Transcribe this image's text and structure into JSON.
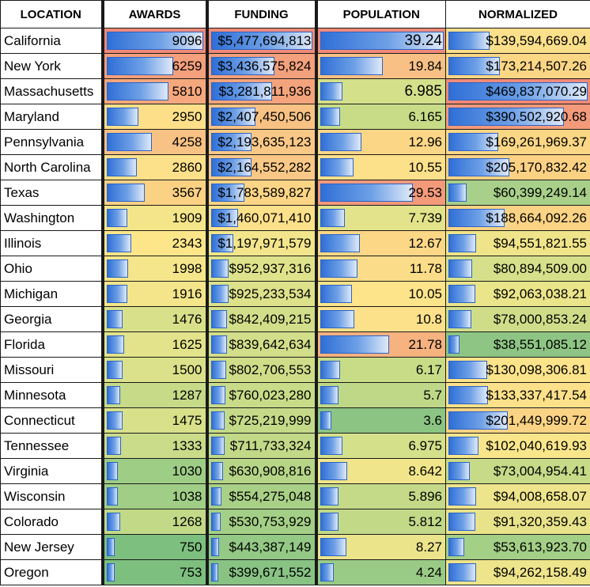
{
  "headers": {
    "location": "LOCATION",
    "awards": "AWARDS",
    "funding": "FUNDING",
    "population": "POPULATION",
    "normalized": "NORMALIZED"
  },
  "bar_maxima": {
    "awards": 9096,
    "funding": 5477694813,
    "population": 39.24,
    "normalized": 469837070.29
  },
  "rows": [
    {
      "location": "California",
      "awards": "9096",
      "funding": "$5,477,694,813",
      "population": "39.24",
      "normalized": "$139,594,669.04",
      "awards_num": 9096,
      "funding_num": 5477694813,
      "population_num": 39.24,
      "normalized_num": 139594669.04,
      "awards_bg": "#f08a78",
      "funding_bg": "#f08a78",
      "population_bg": "#f08a78",
      "normalized_bg": "#fbdf8a"
    },
    {
      "location": "New York",
      "awards": "6259",
      "funding": "$3,436,575,824",
      "population": "19.84",
      "normalized": "$173,214,507.26",
      "awards_num": 6259,
      "funding_num": 3436575824,
      "population_num": 19.84,
      "normalized_num": 173214507.26,
      "awards_bg": "#f4a07c",
      "funding_bg": "#f3a07c",
      "population_bg": "#f8c084",
      "normalized_bg": "#fbd685"
    },
    {
      "location": "Massachusetts",
      "awards": "5810",
      "funding": "$3,281,811,936",
      "population": "6.985",
      "normalized": "$469,837,070.29",
      "awards_num": 5810,
      "funding_num": 3281811936,
      "population_num": 6.985,
      "normalized_num": 469837070.29,
      "awards_bg": "#f5a87d",
      "funding_bg": "#f4a47c",
      "population_bg": "#d4e08a",
      "normalized_bg": "#f08a78"
    },
    {
      "location": "Maryland",
      "awards": "2950",
      "funding": "$2,407,450,506",
      "population": "6.165",
      "normalized": "$390,502,920.68",
      "awards_num": 2950,
      "funding_num": 2407450506,
      "population_num": 6.165,
      "normalized_num": 390502920.68,
      "awards_bg": "#fddf8a",
      "funding_bg": "#f8c284",
      "population_bg": "#c8dc88",
      "normalized_bg": "#f39a7b"
    },
    {
      "location": "Pennsylvania",
      "awards": "4258",
      "funding": "$2,193,635,123",
      "population": "12.96",
      "normalized": "$169,261,969.37",
      "awards_num": 4258,
      "funding_num": 2193635123,
      "population_num": 12.96,
      "normalized_num": 169261969.37,
      "awards_bg": "#f8c284",
      "funding_bg": "#f9c886",
      "population_bg": "#fbd686",
      "normalized_bg": "#fbd785"
    },
    {
      "location": "North Carolina",
      "awards": "2860",
      "funding": "$2,164,552,282",
      "population": "10.55",
      "normalized": "$205,170,832.42",
      "awards_num": 2860,
      "funding_num": 2164552282,
      "population_num": 10.55,
      "normalized_num": 205170832.42,
      "awards_bg": "#fde08a",
      "funding_bg": "#f9c886",
      "population_bg": "#fde08a",
      "normalized_bg": "#fbd184"
    },
    {
      "location": "Texas",
      "awards": "3567",
      "funding": "$1,783,589,827",
      "population": "29.53",
      "normalized": "$60,399,249.14",
      "awards_num": 3567,
      "funding_num": 1783589827,
      "population_num": 29.53,
      "normalized_num": 60399249.14,
      "awards_bg": "#fbd184",
      "funding_bg": "#fbd485",
      "population_bg": "#f39a7b",
      "normalized_bg": "#a8d08a"
    },
    {
      "location": "Washington",
      "awards": "1909",
      "funding": "$1,460,071,410",
      "population": "7.739",
      "normalized": "$188,664,092.26",
      "awards_num": 1909,
      "funding_num": 1460071410,
      "population_num": 7.739,
      "normalized_num": 188664092.26,
      "awards_bg": "#f4e58b",
      "funding_bg": "#fde08a",
      "population_bg": "#e2e38a",
      "normalized_bg": "#fbd385"
    },
    {
      "location": "Illinois",
      "awards": "2343",
      "funding": "$1,197,971,579",
      "population": "12.67",
      "normalized": "$94,551,821.55",
      "awards_num": 2343,
      "funding_num": 1197971579,
      "population_num": 12.67,
      "normalized_num": 94551821.55,
      "awards_bg": "#fde68a",
      "funding_bg": "#f2e58b",
      "population_bg": "#fbd786",
      "normalized_bg": "#f0e48a"
    },
    {
      "location": "Ohio",
      "awards": "1998",
      "funding": "$952,937,316",
      "population": "11.78",
      "normalized": "$80,894,509.00",
      "awards_num": 1998,
      "funding_num": 952937316,
      "population_num": 11.78,
      "normalized_num": 80894509.0,
      "awards_bg": "#f6e68b",
      "funding_bg": "#dfe28a",
      "population_bg": "#fbdc88",
      "normalized_bg": "#d6e08a"
    },
    {
      "location": "Michigan",
      "awards": "1916",
      "funding": "$925,233,534",
      "population": "10.05",
      "normalized": "$92,063,038.21",
      "awards_num": 1916,
      "funding_num": 925233534,
      "population_num": 10.05,
      "normalized_num": 92063038.21,
      "awards_bg": "#f4e58b",
      "funding_bg": "#dce18a",
      "population_bg": "#fde48a",
      "normalized_bg": "#eae48a"
    },
    {
      "location": "Georgia",
      "awards": "1476",
      "funding": "$842,409,215",
      "population": "10.8",
      "normalized": "$78,000,853.24",
      "awards_num": 1476,
      "funding_num": 842409215,
      "population_num": 10.8,
      "normalized_num": 78000853.24,
      "awards_bg": "#d8e08a",
      "funding_bg": "#d2de89",
      "population_bg": "#fde18a",
      "normalized_bg": "#cfdd89"
    },
    {
      "location": "Florida",
      "awards": "1625",
      "funding": "$839,642,634",
      "population": "21.78",
      "normalized": "$38,551,085.12",
      "awards_num": 1625,
      "funding_num": 839642634,
      "population_num": 21.78,
      "normalized_num": 38551085.12,
      "awards_bg": "#e2e38a",
      "funding_bg": "#d2de89",
      "population_bg": "#f6b27f",
      "normalized_bg": "#8ec584"
    },
    {
      "location": "Missouri",
      "awards": "1500",
      "funding": "$802,706,553",
      "population": "6.17",
      "normalized": "$130,098,306.81",
      "awards_num": 1500,
      "funding_num": 802706553,
      "population_num": 6.17,
      "normalized_num": 130098306.81,
      "awards_bg": "#dae18a",
      "funding_bg": "#cfdd89",
      "population_bg": "#c8dc88",
      "normalized_bg": "#fde38a"
    },
    {
      "location": "Minnesota",
      "awards": "1287",
      "funding": "$760,023,280",
      "population": "5.7",
      "normalized": "$133,337,417.54",
      "awards_num": 1287,
      "funding_num": 760023280,
      "population_num": 5.7,
      "normalized_num": 133337417.54,
      "awards_bg": "#c6da88",
      "funding_bg": "#c8db88",
      "population_bg": "#bfd887",
      "normalized_bg": "#fde18a"
    },
    {
      "location": "Connecticut",
      "awards": "1475",
      "funding": "$725,219,999",
      "population": "3.6",
      "normalized": "$201,449,999.72",
      "awards_num": 1475,
      "funding_num": 725219999,
      "population_num": 3.6,
      "normalized_num": 201449999.72,
      "awards_bg": "#d8e08a",
      "funding_bg": "#c4da88",
      "population_bg": "#8cc484",
      "normalized_bg": "#fbd384"
    },
    {
      "location": "Tennessee",
      "awards": "1333",
      "funding": "$711,733,324",
      "population": "6.975",
      "normalized": "$102,040,619.93",
      "awards_num": 1333,
      "funding_num": 711733324,
      "population_num": 6.975,
      "normalized_num": 102040619.93,
      "awards_bg": "#cadb89",
      "funding_bg": "#c2d988",
      "population_bg": "#d4e08a",
      "normalized_bg": "#f9e68b"
    },
    {
      "location": "Virginia",
      "awards": "1030",
      "funding": "$630,908,816",
      "population": "8.642",
      "normalized": "$73,004,954.41",
      "awards_num": 1030,
      "funding_num": 630908816,
      "population_num": 8.642,
      "normalized_num": 73004954.41,
      "awards_bg": "#9ecd86",
      "funding_bg": "#b6d587",
      "population_bg": "#f1e58b",
      "normalized_bg": "#c6da88"
    },
    {
      "location": "Wisconsin",
      "awards": "1038",
      "funding": "$554,275,048",
      "population": "5.896",
      "normalized": "$94,008,658.07",
      "awards_num": 1038,
      "funding_num": 554275048,
      "population_num": 5.896,
      "normalized_num": 94008658.07,
      "awards_bg": "#a0ce86",
      "funding_bg": "#a8d086",
      "population_bg": "#c4da88",
      "normalized_bg": "#eee48b"
    },
    {
      "location": "Colorado",
      "awards": "1268",
      "funding": "$530,753,929",
      "population": "5.812",
      "normalized": "$91,320,359.43",
      "awards_num": 1268,
      "funding_num": 530753929,
      "population_num": 5.812,
      "normalized_num": 91320359.43,
      "awards_bg": "#c2d988",
      "funding_bg": "#a4cf86",
      "population_bg": "#c2d988",
      "normalized_bg": "#e8e38a"
    },
    {
      "location": "New Jersey",
      "awards": "750",
      "funding": "$443,387,149",
      "population": "8.27",
      "normalized": "$53,613,923.70",
      "awards_num": 750,
      "funding_num": 443387149,
      "population_num": 8.27,
      "normalized_num": 53613923.7,
      "awards_bg": "#7dbf7f",
      "funding_bg": "#93c885",
      "population_bg": "#ece48b",
      "normalized_bg": "#a4cf86"
    },
    {
      "location": "Oregon",
      "awards": "753",
      "funding": "$399,671,552",
      "population": "4.24",
      "normalized": "$94,262,158.49",
      "awards_num": 753,
      "funding_num": 399671552,
      "population_num": 4.24,
      "normalized_num": 94262158.49,
      "awards_bg": "#7dbf7f",
      "funding_bg": "#88c384",
      "population_bg": "#9acb86",
      "normalized_bg": "#eee48b"
    }
  ]
}
